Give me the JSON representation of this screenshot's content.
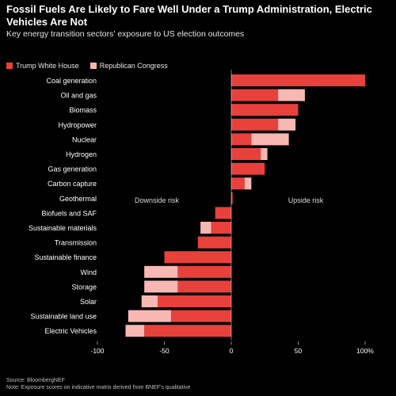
{
  "title": "Fossil Fuels Are Likely to Fare Well Under a Trump Administration, Electric Vehicles Are Not",
  "subtitle": "Key energy transition sectors' exposure to US election outcomes",
  "source": "Source: BloombergNEF",
  "note": "Note: Exposure scores on indicative matrix derived from BNEF's qualitative",
  "colors": {
    "primary": "#e8413c",
    "secondary": "#f7b8b4",
    "background": "#000000",
    "text": "#ffffff"
  },
  "chart_data": {
    "type": "bar",
    "orientation": "horizontal",
    "stacked": true,
    "title": "Fossil Fuels Are Likely to Fare Well Under a Trump Administration, Electric Vehicles Are Not",
    "subtitle": "Key energy transition sectors' exposure to US election outcomes",
    "categories": [
      "Coal generation",
      "Oil and gas",
      "Biomass",
      "Hydropower",
      "Nuclear",
      "Hydrogen",
      "Gas generation",
      "Carbon capture",
      "Geothermal",
      "Biofuels and SAF",
      "Sustainable materials",
      "Transmission",
      "Sustainable finance",
      "Wind",
      "Storage",
      "Solar",
      "Sustainable land use",
      "Electric Vehicles"
    ],
    "series": [
      {
        "name": "Trump White House",
        "color": "#e8413c",
        "values": [
          100,
          35,
          50,
          35,
          15,
          22,
          25,
          10,
          1,
          -12,
          -15,
          -25,
          -50,
          -40,
          -40,
          -55,
          -45,
          -65
        ]
      },
      {
        "name": "Republican Congress",
        "color": "#f7b8b4",
        "values": [
          0,
          20,
          0,
          13,
          28,
          5,
          0,
          5,
          0,
          0,
          -8,
          0,
          0,
          -25,
          -25,
          -12,
          -32,
          -14
        ]
      }
    ],
    "xlim": [
      -100,
      100
    ],
    "xticks": [
      "-100",
      "-50",
      "0",
      "50",
      "100%"
    ],
    "xtick_values": [
      -100,
      -50,
      0,
      50,
      100
    ],
    "annotations": {
      "left": "Downside risk",
      "right": "Upside risk"
    },
    "legend_position": "top-left",
    "grid": false
  }
}
